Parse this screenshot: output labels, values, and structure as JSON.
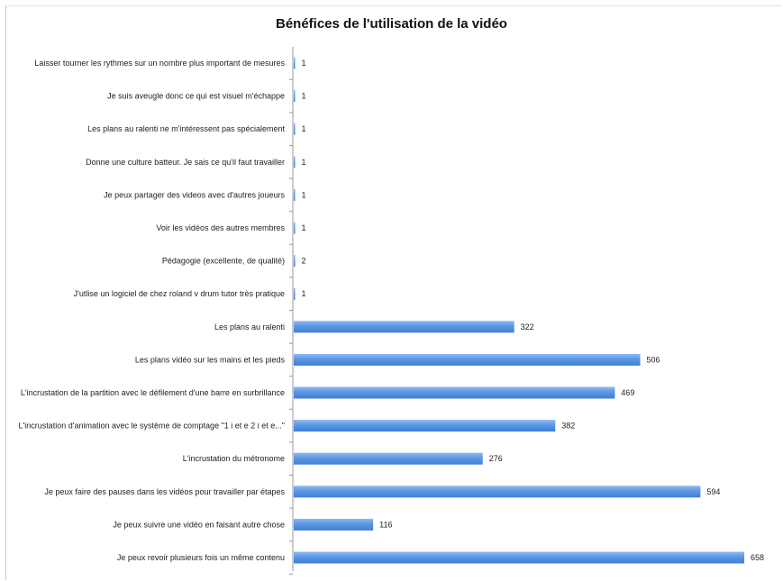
{
  "chart_data": {
    "type": "bar",
    "orientation": "horizontal",
    "title": "Bénéfices de l'utilisation de la vidéo",
    "xlabel": "",
    "ylabel": "",
    "xlim": [
      0,
      658
    ],
    "grid": false,
    "bar_color": "#4f8fe0",
    "categories": [
      "Laisser tourner les rythmes sur un nombre plus important de mesures",
      "Je suis aveugle donc ce qui est visuel m'échappe",
      "Les plans au ralenti ne m'intéressent pas spécialement",
      "Donne une culture batteur. Je sais ce qu'il faut travailler",
      "Je peux partager des videos avec d'autres joueurs",
      "Voir les vidéos des autres membres",
      "Pédagogie (excellente, de qualité)",
      "J'utlise un logiciel de chez roland v drum tutor très pratique",
      "Les plans au ralenti",
      "Les plans vidéo sur les mains et les pieds",
      "L'incrustation de la partition avec le défilement d'une barre en surbrillance",
      "L'incrustation d'animation avec le système de comptage \"1 i et e 2 i et e...\"",
      "L'incrustation du métronome",
      "Je peux faire des pauses dans les vidéos pour travailler par étapes",
      "Je peux suivre une vidéo en faisant autre chose",
      "Je peux revoir plusieurs fois un même contenu"
    ],
    "values": [
      1,
      1,
      1,
      1,
      1,
      1,
      2,
      1,
      322,
      506,
      469,
      382,
      276,
      594,
      116,
      658
    ]
  }
}
